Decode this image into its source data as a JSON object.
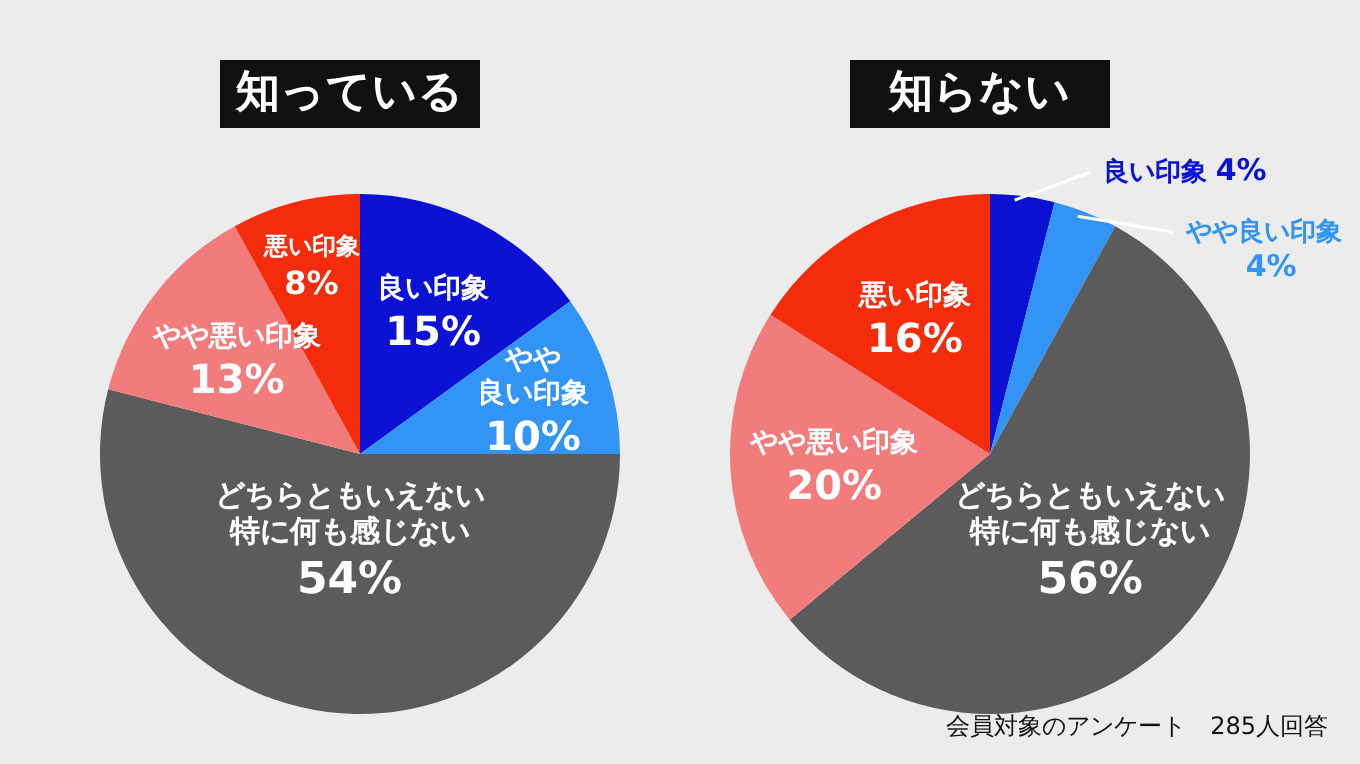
{
  "chart_data": [
    {
      "type": "pie",
      "title": "知っている",
      "categories": [
        "良い印象",
        "やや良い印象",
        "どちらともいえない特に何も感じない",
        "やや悪い印象",
        "悪い印象"
      ],
      "values": [
        15,
        10,
        54,
        13,
        8
      ],
      "value_labels": [
        "15%",
        "10%",
        "54%",
        "13%",
        "8%"
      ],
      "colors": [
        "#0b12d4",
        "#3294f5",
        "#5b5b5b",
        "#f27b7b",
        "#f42c0c"
      ],
      "legend": false
    },
    {
      "type": "pie",
      "title": "知らない",
      "categories": [
        "良い印象",
        "やや良い印象",
        "どちらともいえない特に何も感じない",
        "やや悪い印象",
        "悪い印象"
      ],
      "values": [
        4,
        4,
        56,
        20,
        16
      ],
      "value_labels": [
        "4%",
        "4%",
        "56%",
        "20%",
        "16%"
      ],
      "colors": [
        "#0b12d4",
        "#3294f5",
        "#5b5b5b",
        "#f27b7b",
        "#f42c0c"
      ],
      "legend": false,
      "annotations": [
        "会員対象のアンケート　285人回答"
      ]
    }
  ]
}
